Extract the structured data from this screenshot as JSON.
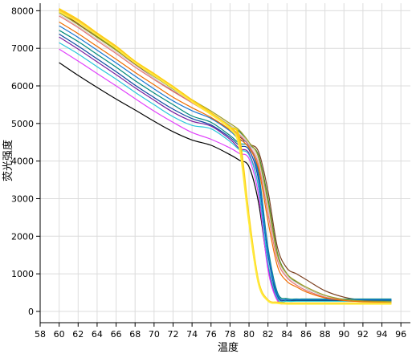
{
  "chart_data": {
    "type": "line",
    "title": "",
    "xlabel": "温度",
    "ylabel": "荧光强度",
    "xlim": [
      58,
      97
    ],
    "ylim": [
      -300,
      8200
    ],
    "grid": true,
    "legend": "none",
    "x_ticks": [
      "58",
      "60",
      "62",
      "64",
      "66",
      "68",
      "70",
      "72",
      "74",
      "76",
      "78",
      "80",
      "82",
      "84",
      "86",
      "88",
      "90",
      "92",
      "94",
      "96"
    ],
    "y_ticks": [
      "0",
      "1000",
      "2000",
      "3000",
      "4000",
      "5000",
      "6000",
      "7000",
      "8000"
    ],
    "curve_x": [
      60,
      62,
      64,
      66,
      68,
      70,
      72,
      74,
      76,
      78,
      79,
      80,
      81,
      82,
      83,
      84,
      85,
      86,
      88,
      90,
      92,
      95
    ],
    "series": [
      {
        "color": "#000000",
        "values": [
          6620,
          6280,
          5960,
          5650,
          5360,
          5060,
          4780,
          4560,
          4420,
          4170,
          4020,
          3850,
          2900,
          1200,
          420,
          290,
          280,
          280,
          280,
          280,
          280,
          280
        ]
      },
      {
        "color": "#7b3f1f",
        "values": [
          8000,
          7650,
          7300,
          6950,
          6580,
          6200,
          5870,
          5560,
          5270,
          4900,
          4650,
          4450,
          4250,
          3200,
          1700,
          1150,
          1000,
          850,
          550,
          380,
          300,
          260
        ]
      },
      {
        "color": "#2e7d32",
        "values": [
          8020,
          7700,
          7330,
          6980,
          6600,
          6270,
          5920,
          5590,
          5280,
          4950,
          4780,
          4450,
          4150,
          3000,
          1550,
          1000,
          780,
          620,
          420,
          320,
          290,
          280
        ]
      },
      {
        "color": "#00897b",
        "values": [
          7480,
          7180,
          6840,
          6500,
          6140,
          5810,
          5500,
          5200,
          5030,
          4680,
          4470,
          4380,
          3700,
          1700,
          500,
          340,
          330,
          330,
          330,
          330,
          330,
          330
        ]
      },
      {
        "color": "#0d47a1",
        "values": [
          7380,
          7060,
          6720,
          6380,
          6020,
          5690,
          5380,
          5130,
          4960,
          4630,
          4410,
          4300,
          3500,
          1500,
          400,
          300,
          300,
          300,
          300,
          300,
          300,
          300
        ]
      },
      {
        "color": "#1976d2",
        "values": [
          7600,
          7290,
          6950,
          6610,
          6260,
          5920,
          5600,
          5340,
          5130,
          4800,
          4560,
          4430,
          3600,
          1600,
          450,
          310,
          310,
          310,
          310,
          310,
          310,
          310
        ]
      },
      {
        "color": "#7b1fa2",
        "values": [
          7300,
          6980,
          6640,
          6300,
          5950,
          5620,
          5300,
          5060,
          4930,
          4580,
          4330,
          4200,
          3300,
          1200,
          300,
          220,
          220,
          220,
          220,
          220,
          220,
          220
        ]
      },
      {
        "color": "#e040fb",
        "values": [
          6980,
          6660,
          6330,
          6000,
          5660,
          5330,
          5030,
          4760,
          4580,
          4350,
          4200,
          4060,
          3100,
          1100,
          280,
          220,
          220,
          220,
          220,
          220,
          220,
          220
        ]
      },
      {
        "color": "#26c6da",
        "values": [
          7150,
          6850,
          6510,
          6180,
          5830,
          5500,
          5180,
          4950,
          4860,
          4520,
          4300,
          4160,
          3300,
          1300,
          350,
          270,
          270,
          270,
          270,
          270,
          270,
          270
        ]
      },
      {
        "color": "#e57373",
        "values": [
          7860,
          7550,
          7200,
          6860,
          6500,
          6170,
          5850,
          5550,
          5240,
          4900,
          4700,
          4400,
          3900,
          2600,
          1350,
          900,
          700,
          560,
          380,
          300,
          260,
          250
        ]
      },
      {
        "color": "#d7ccc8",
        "values": [
          7900,
          7580,
          7240,
          6900,
          6550,
          6200,
          5890,
          5580,
          5290,
          4960,
          4750,
          4450,
          4000,
          2750,
          1450,
          950,
          760,
          620,
          420,
          320,
          270,
          250
        ]
      },
      {
        "color": "#ef6c00",
        "values": [
          7700,
          7390,
          7050,
          6710,
          6360,
          6030,
          5700,
          5420,
          5160,
          4830,
          4600,
          4350,
          3800,
          2400,
          1200,
          800,
          650,
          520,
          360,
          290,
          260,
          250
        ]
      },
      {
        "color": "#9e9d24",
        "values": [
          7950,
          7630,
          7290,
          6950,
          6600,
          6250,
          5930,
          5630,
          5330,
          5000,
          4820,
          4500,
          4100,
          2900,
          1500,
          1000,
          800,
          650,
          430,
          320,
          280,
          260
        ]
      },
      {
        "color": "#ffd600",
        "values": [
          8050,
          7760,
          7400,
          7050,
          6650,
          6320,
          5980,
          5620,
          5280,
          4900,
          4600,
          2500,
          800,
          300,
          240,
          220,
          220,
          220,
          220,
          220,
          220,
          220
        ]
      },
      {
        "color": "#fbc02d",
        "values": [
          8020,
          7740,
          7380,
          7030,
          6630,
          6300,
          5960,
          5600,
          5260,
          4880,
          4480,
          2400,
          760,
          290,
          230,
          210,
          210,
          210,
          210,
          210,
          210,
          210
        ]
      },
      {
        "color": "#ffeb3b",
        "values": [
          7980,
          7700,
          7350,
          7000,
          6610,
          6280,
          5940,
          5580,
          5240,
          4860,
          4350,
          2350,
          740,
          280,
          220,
          200,
          200,
          200,
          200,
          200,
          200,
          200
        ]
      }
    ]
  }
}
